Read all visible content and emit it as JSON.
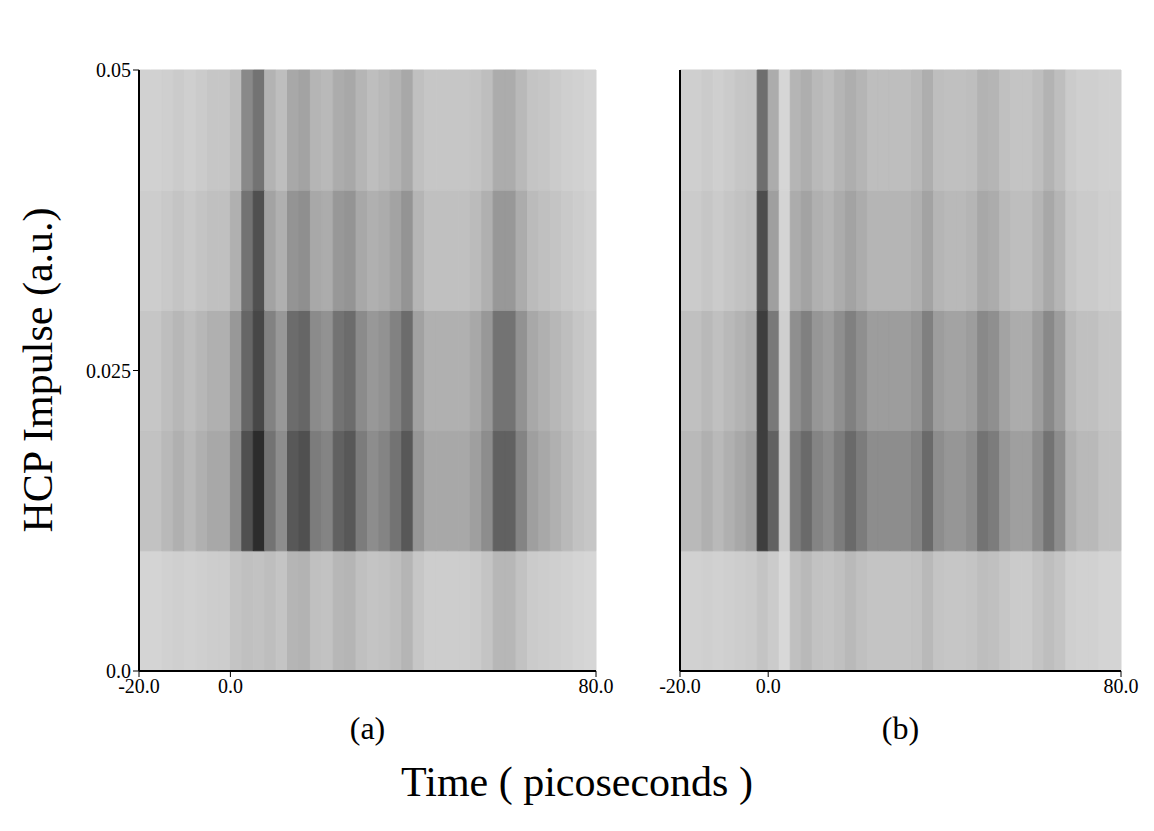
{
  "chart_data": [
    {
      "type": "heatmap",
      "title": "(a)",
      "x_label": "Time ( picoseconds )",
      "y_label": "HCP Impulse (a.u.)",
      "xlim": [
        -20,
        80
      ],
      "xticks": [
        {
          "value": -20,
          "label": "-20.0"
        },
        {
          "value": 0,
          "label": "0.0"
        },
        {
          "value": 80,
          "label": "80.0"
        }
      ],
      "ylim": [
        0,
        0.05
      ],
      "yticks": [
        {
          "value": 0,
          "label": "0.0"
        },
        0.025,
        0.05
      ],
      "x_edges": [
        -20,
        -17.5,
        -15,
        -12.5,
        -10,
        -7.5,
        -5,
        -2.5,
        0,
        2.5,
        5,
        7.5,
        10,
        12.5,
        15,
        17.5,
        20,
        22.5,
        25,
        27.5,
        30,
        32.5,
        35,
        37.5,
        40,
        42.5,
        45,
        47.5,
        50,
        52.5,
        55,
        57.5,
        60,
        62.5,
        65,
        67.5,
        70,
        72.5,
        75,
        77.5,
        80
      ],
      "y_edges": [
        0,
        0.01,
        0.02,
        0.03,
        0.04,
        0.05
      ],
      "cells": [
        [
          12,
          12,
          13,
          14,
          13,
          14,
          15,
          15,
          19,
          21,
          20,
          22,
          19,
          26,
          27,
          21,
          20,
          25,
          26,
          21,
          19,
          20,
          22,
          26,
          18,
          15,
          15,
          15,
          15,
          16,
          19,
          25,
          25,
          20,
          16,
          15,
          14,
          13,
          12,
          11
        ],
        [
          20,
          20,
          24,
          28,
          24,
          28,
          32,
          32,
          44,
          72,
          88,
          56,
          44,
          68,
          72,
          52,
          48,
          64,
          68,
          52,
          44,
          48,
          56,
          68,
          40,
          32,
          32,
          32,
          32,
          36,
          44,
          64,
          64,
          48,
          36,
          32,
          28,
          24,
          20,
          18
        ],
        [
          18,
          18,
          22,
          25,
          22,
          25,
          28,
          28,
          39,
          62,
          76,
          49,
          39,
          59,
          62,
          45,
          42,
          56,
          59,
          45,
          39,
          42,
          49,
          59,
          35,
          28,
          28,
          28,
          28,
          32,
          39,
          56,
          56,
          42,
          32,
          28,
          25,
          22,
          18,
          16
        ],
        [
          15,
          15,
          17,
          19,
          17,
          19,
          21,
          21,
          28,
          56,
          72,
          34,
          28,
          41,
          43,
          32,
          30,
          39,
          41,
          32,
          28,
          30,
          34,
          41,
          26,
          21,
          21,
          21,
          21,
          23,
          28,
          39,
          39,
          30,
          23,
          21,
          19,
          17,
          15,
          13
        ],
        [
          13,
          13,
          14,
          16,
          14,
          16,
          18,
          18,
          22,
          46,
          56,
          27,
          22,
          32,
          34,
          26,
          24,
          30,
          32,
          26,
          22,
          24,
          27,
          32,
          21,
          18,
          18,
          18,
          18,
          19,
          22,
          30,
          30,
          24,
          19,
          18,
          16,
          14,
          13,
          12
        ]
      ]
    },
    {
      "type": "heatmap",
      "title": "(b)",
      "tick_labels": "x",
      "xlim": [
        -20,
        80
      ],
      "xticks": [
        {
          "value": -20,
          "label": "-20.0"
        },
        {
          "value": 0,
          "label": "0.0"
        },
        {
          "value": 80,
          "label": "80.0"
        }
      ],
      "ylim": [
        0,
        0.05
      ],
      "yticks": [
        0,
        0.025,
        0.05
      ],
      "x_edges": [
        -20,
        -17.5,
        -15,
        -12.5,
        -10,
        -7.5,
        -5,
        -2.5,
        0,
        2.5,
        5,
        7.5,
        10,
        12.5,
        15,
        17.5,
        20,
        22.5,
        25,
        27.5,
        30,
        32.5,
        35,
        37.5,
        40,
        42.5,
        45,
        47.5,
        50,
        52.5,
        55,
        57.5,
        60,
        62.5,
        65,
        67.5,
        70,
        72.5,
        75,
        77.5,
        80
      ],
      "y_edges": [
        0,
        0.01,
        0.02,
        0.03,
        0.04,
        0.05
      ],
      "cells": [
        [
          13,
          13,
          14,
          13,
          14,
          15,
          16,
          19,
          16,
          10,
          21,
          24,
          20,
          19,
          21,
          24,
          21,
          19,
          19,
          19,
          19,
          20,
          24,
          19,
          18,
          18,
          19,
          22,
          21,
          18,
          16,
          16,
          19,
          22,
          19,
          14,
          13,
          13,
          12,
          12
        ],
        [
          24,
          24,
          28,
          24,
          28,
          32,
          36,
          80,
          64,
          16,
          52,
          60,
          48,
          44,
          52,
          60,
          52,
          44,
          44,
          44,
          44,
          48,
          60,
          44,
          40,
          40,
          44,
          56,
          52,
          40,
          36,
          36,
          44,
          56,
          44,
          28,
          24,
          24,
          20,
          20
        ],
        [
          21,
          21,
          24,
          21,
          24,
          27,
          30,
          80,
          53,
          14,
          43,
          50,
          40,
          37,
          43,
          50,
          43,
          37,
          37,
          37,
          37,
          40,
          50,
          37,
          34,
          34,
          37,
          46,
          43,
          34,
          30,
          30,
          37,
          46,
          37,
          24,
          21,
          21,
          18,
          18
        ],
        [
          16,
          16,
          18,
          16,
          18,
          20,
          22,
          73,
          36,
          12,
          30,
          34,
          28,
          26,
          30,
          34,
          30,
          26,
          26,
          26,
          26,
          28,
          34,
          26,
          24,
          24,
          26,
          32,
          30,
          24,
          22,
          22,
          26,
          32,
          26,
          18,
          16,
          16,
          14,
          14
        ],
        [
          14,
          14,
          16,
          14,
          16,
          18,
          19,
          58,
          30,
          11,
          26,
          29,
          24,
          22,
          26,
          29,
          26,
          22,
          22,
          22,
          22,
          24,
          29,
          22,
          21,
          21,
          22,
          27,
          26,
          21,
          19,
          19,
          22,
          27,
          22,
          16,
          14,
          14,
          13,
          13
        ]
      ]
    }
  ]
}
